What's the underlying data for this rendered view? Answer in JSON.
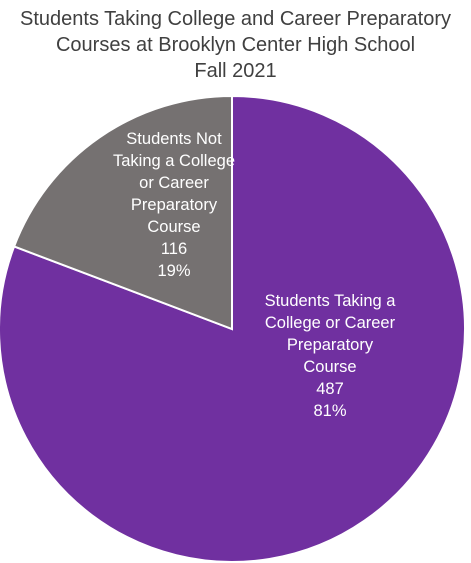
{
  "chart_data": {
    "type": "pie",
    "title": [
      "Students Taking College and Career Preparatory",
      "Courses at Brooklyn Center High School",
      "Fall 2021"
    ],
    "slices": [
      {
        "name_lines": [
          "Students Taking a",
          "College or Career",
          "Preparatory",
          "Course"
        ],
        "value": 487,
        "percent_label": "81%",
        "color": "#7030a0"
      },
      {
        "name_lines": [
          "Students Not",
          "Taking a College",
          "or Career",
          "Preparatory",
          "Course"
        ],
        "value": 116,
        "percent_label": "19%",
        "color": "#757171"
      }
    ],
    "start_angle": "12 o'clock",
    "direction": "clockwise",
    "legend": "none"
  }
}
